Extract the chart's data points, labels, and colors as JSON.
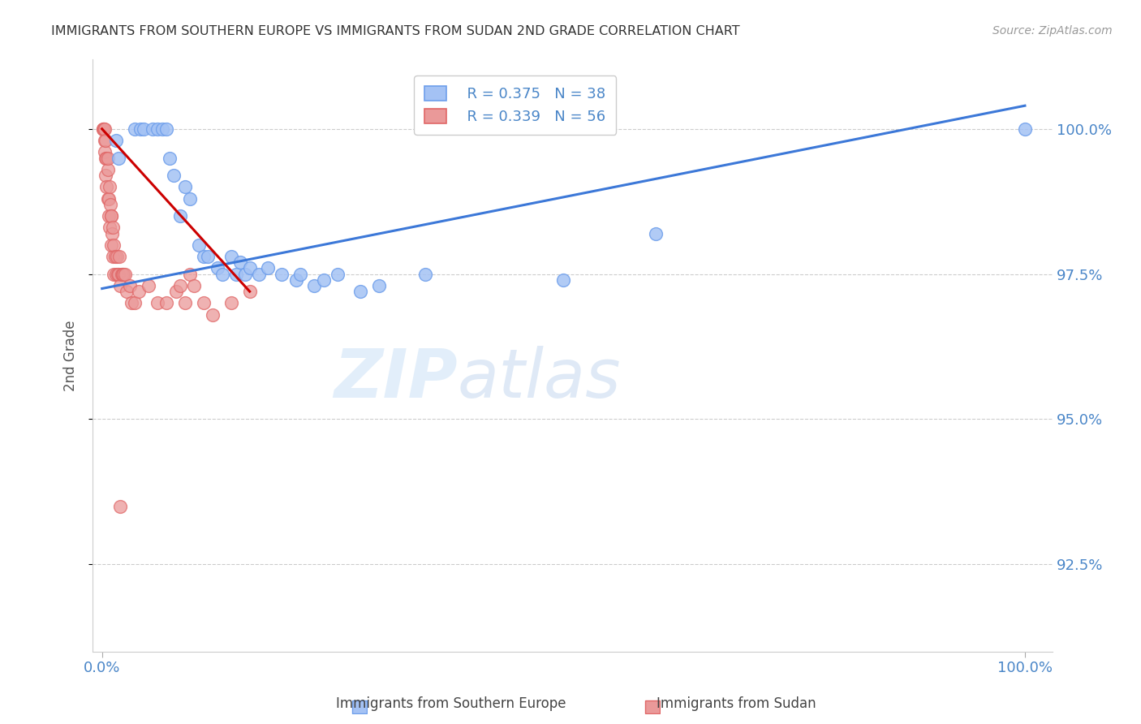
{
  "title": "IMMIGRANTS FROM SOUTHERN EUROPE VS IMMIGRANTS FROM SUDAN 2ND GRADE CORRELATION CHART",
  "source": "Source: ZipAtlas.com",
  "ylabel": "2nd Grade",
  "y_tick_vals": [
    92.5,
    95.0,
    97.5,
    100.0
  ],
  "x_min": -1.0,
  "x_max": 103,
  "y_min": 91.0,
  "y_max": 101.2,
  "legend_blue_r": "R = 0.375",
  "legend_blue_n": "N = 38",
  "legend_pink_r": "R = 0.339",
  "legend_pink_n": "N = 56",
  "color_blue": "#a4c2f4",
  "color_pink": "#ea9999",
  "color_blue_edge": "#6d9eeb",
  "color_pink_edge": "#e06666",
  "color_blue_line": "#3c78d8",
  "color_pink_line": "#cc0000",
  "color_axis_labels": "#4a86c8",
  "color_title": "#333333",
  "color_grid": "#cccccc",
  "bottom_legend_blue": "Immigrants from Southern Europe",
  "bottom_legend_pink": "Immigrants from Sudan",
  "blue_scatter_x": [
    1.5,
    1.8,
    3.5,
    4.2,
    4.5,
    5.5,
    6.0,
    6.5,
    7.0,
    7.3,
    7.8,
    8.5,
    9.0,
    9.5,
    10.5,
    11.0,
    11.5,
    12.5,
    13.0,
    14.0,
    14.5,
    15.0,
    15.5,
    16.0,
    17.0,
    18.0,
    19.5,
    21.0,
    21.5,
    23.0,
    24.0,
    25.5,
    28.0,
    30.0,
    35.0,
    50.0,
    60.0,
    100.0
  ],
  "blue_scatter_y": [
    99.8,
    99.5,
    100.0,
    100.0,
    100.0,
    100.0,
    100.0,
    100.0,
    100.0,
    99.5,
    99.2,
    98.5,
    99.0,
    98.8,
    98.0,
    97.8,
    97.8,
    97.6,
    97.5,
    97.8,
    97.5,
    97.7,
    97.5,
    97.6,
    97.5,
    97.6,
    97.5,
    97.4,
    97.5,
    97.3,
    97.4,
    97.5,
    97.2,
    97.3,
    97.5,
    97.4,
    98.2,
    100.0
  ],
  "pink_scatter_x": [
    0.1,
    0.15,
    0.2,
    0.25,
    0.3,
    0.3,
    0.35,
    0.4,
    0.4,
    0.5,
    0.5,
    0.6,
    0.6,
    0.65,
    0.7,
    0.75,
    0.8,
    0.85,
    0.9,
    0.95,
    1.0,
    1.0,
    1.1,
    1.15,
    1.2,
    1.25,
    1.3,
    1.4,
    1.5,
    1.6,
    1.7,
    1.8,
    1.9,
    2.0,
    2.1,
    2.2,
    2.3,
    2.5,
    2.7,
    3.0,
    3.2,
    3.5,
    4.0,
    5.0,
    6.0,
    7.0,
    8.0,
    8.5,
    9.0,
    9.5,
    10.0,
    11.0,
    12.0,
    14.0,
    16.0,
    2.0
  ],
  "pink_scatter_y": [
    100.0,
    100.0,
    100.0,
    99.8,
    100.0,
    99.6,
    99.5,
    99.8,
    99.2,
    99.5,
    99.0,
    99.3,
    98.8,
    99.5,
    98.5,
    98.8,
    99.0,
    98.3,
    98.7,
    98.5,
    98.5,
    98.0,
    98.2,
    97.8,
    98.3,
    97.5,
    98.0,
    97.8,
    97.5,
    97.8,
    97.5,
    97.5,
    97.8,
    97.3,
    97.5,
    97.5,
    97.5,
    97.5,
    97.2,
    97.3,
    97.0,
    97.0,
    97.2,
    97.3,
    97.0,
    97.0,
    97.2,
    97.3,
    97.0,
    97.5,
    97.3,
    97.0,
    96.8,
    97.0,
    97.2,
    93.5
  ],
  "blue_trend_x": [
    0.0,
    100.0
  ],
  "blue_trend_y": [
    97.25,
    100.4
  ],
  "pink_trend_x": [
    0.0,
    16.0
  ],
  "pink_trend_y": [
    100.0,
    97.2
  ]
}
